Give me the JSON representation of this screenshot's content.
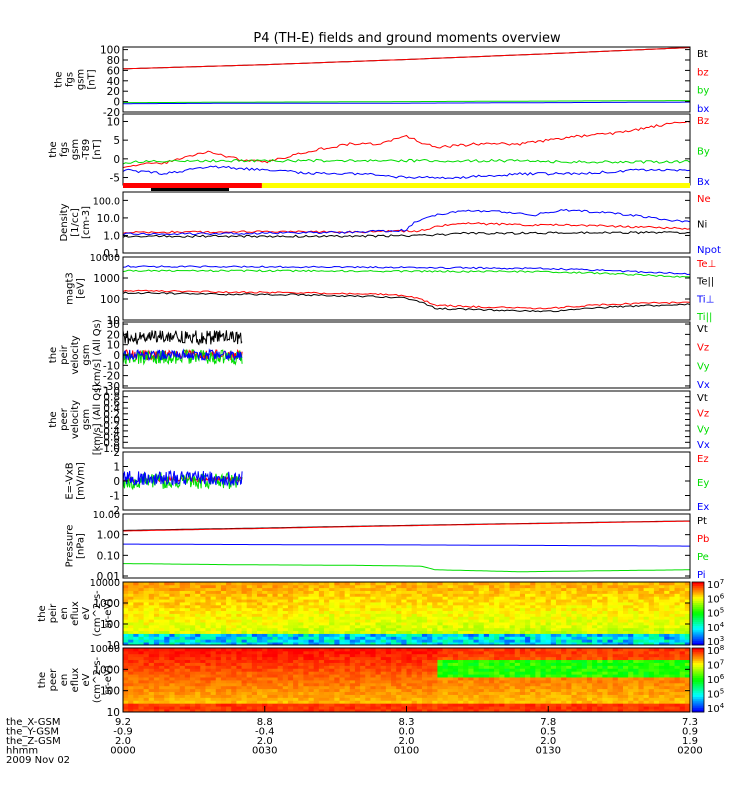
{
  "title": "P4 (TH-E) fields and ground moments overview",
  "colors": {
    "black": "#000000",
    "red": "#ff0000",
    "green": "#00dd00",
    "blue": "#0000ff",
    "yellow": "#ffff00"
  },
  "x_axis": {
    "ticks": [
      "0000",
      "0030",
      "0100",
      "0130",
      "0200"
    ],
    "rows": [
      {
        "name": "the_X-GSM",
        "values": [
          "9.2",
          "8.8",
          "8.3",
          "7.8",
          "7.3"
        ]
      },
      {
        "name": "the_Y-GSM",
        "values": [
          "-0.9",
          "-0.4",
          "0.0",
          "0.5",
          "0.9"
        ]
      },
      {
        "name": "the_Z-GSM",
        "values": [
          "2.0",
          "2.0",
          "2.0",
          "2.0",
          "1.9"
        ]
      },
      {
        "name": "hhmm",
        "values": []
      }
    ],
    "date": "2009 Nov 02"
  },
  "chart_data": [
    {
      "type": "line",
      "ylabel": [
        "the",
        "fgs",
        "gsm",
        "[nT]"
      ],
      "yticks": [
        "-20",
        "0",
        "20",
        "40",
        "60",
        "80",
        "100"
      ],
      "ylim": [
        -20,
        105
      ],
      "legend": [
        {
          "name": "Bt",
          "color": "black"
        },
        {
          "name": "bz",
          "color": "red"
        },
        {
          "name": "by",
          "color": "green"
        },
        {
          "name": "bx",
          "color": "blue"
        }
      ],
      "series": [
        {
          "name": "Bt",
          "color": "black",
          "x": [
            0,
            0.5,
            1,
            1.5,
            2
          ],
          "values": [
            63,
            71,
            81,
            92,
            104
          ]
        },
        {
          "name": "bz",
          "color": "red",
          "x": [
            0,
            0.5,
            1,
            1.5,
            2
          ],
          "values": [
            63,
            71,
            81,
            92,
            104
          ]
        },
        {
          "name": "by",
          "color": "green",
          "x": [
            0,
            0.5,
            1,
            1.5,
            2
          ],
          "values": [
            -2,
            -1,
            0,
            1,
            2
          ]
        },
        {
          "name": "bx",
          "color": "blue",
          "x": [
            0,
            0.5,
            1,
            1.5,
            2
          ],
          "values": [
            -4,
            -3,
            -3,
            -2,
            -1
          ]
        }
      ]
    },
    {
      "type": "line",
      "ylabel": [
        "the",
        "fgs",
        "gsm",
        "-T89",
        "[nT]"
      ],
      "yticks": [
        "-5",
        "0",
        "5",
        "10"
      ],
      "ylim": [
        -7,
        12
      ],
      "legend": [
        {
          "name": "Bz",
          "color": "red"
        },
        {
          "name": "By",
          "color": "green"
        },
        {
          "name": "Bx",
          "color": "blue"
        }
      ],
      "series": [
        {
          "name": "Bz",
          "color": "red",
          "x": [
            0,
            0.15,
            0.3,
            0.4,
            0.5,
            0.65,
            0.8,
            0.9,
            1.0,
            1.1,
            1.25,
            1.4,
            1.6,
            1.75,
            1.9,
            2.0
          ],
          "values": [
            -2,
            -1,
            2,
            0,
            -1,
            2,
            4,
            4,
            6,
            3,
            4,
            4,
            6,
            7,
            9,
            10
          ]
        },
        {
          "name": "By",
          "color": "green",
          "x": [
            0,
            0.15,
            0.3,
            0.5,
            0.7,
            1.0,
            1.3,
            1.6,
            2.0
          ],
          "values": [
            -1,
            -0.5,
            -0.5,
            -0.5,
            -0.5,
            -0.5,
            -0.5,
            -0.8,
            -0.8
          ]
        },
        {
          "name": "Bx",
          "color": "blue",
          "x": [
            0,
            0.15,
            0.3,
            0.5,
            0.7,
            0.85,
            1.0,
            1.2,
            1.4,
            1.6,
            1.8,
            2.0
          ],
          "values": [
            -3,
            -4,
            -2,
            -3,
            -4,
            -4,
            -5,
            -5,
            -4,
            -4,
            -3,
            -3
          ]
        }
      ]
    },
    {
      "type": "line",
      "ylabel": [
        "Density",
        "[1/cc]",
        "[cm-3]"
      ],
      "yticks": [
        "0.1",
        "1.0",
        "10.0",
        "100.0"
      ],
      "yscale": "log",
      "ylim": [
        0.1,
        300
      ],
      "legend": [
        {
          "name": "Ne",
          "color": "red"
        },
        {
          "name": "Ni",
          "color": "black"
        },
        {
          "name": "Npot",
          "color": "blue"
        }
      ],
      "series": [
        {
          "name": "Ne",
          "color": "red",
          "x": [
            0,
            0.4,
            0.8,
            1.05,
            1.1,
            1.2,
            1.4,
            1.6,
            1.8,
            2.0
          ],
          "values": [
            1.5,
            1.6,
            1.6,
            1.8,
            3,
            5,
            4,
            4,
            3,
            2.5
          ]
        },
        {
          "name": "Ni",
          "color": "black",
          "x": [
            0,
            0.4,
            0.8,
            1.05,
            1.2,
            1.6,
            2.0
          ],
          "values": [
            0.9,
            0.9,
            0.9,
            1.0,
            1.3,
            1.4,
            1.5
          ]
        },
        {
          "name": "Npot",
          "color": "blue",
          "x": [
            0,
            0.4,
            0.8,
            1.0,
            1.1,
            1.2,
            1.35,
            1.45,
            1.55,
            1.7,
            1.9,
            2.0
          ],
          "values": [
            1.2,
            1.3,
            1.5,
            2,
            14,
            25,
            22,
            14,
            28,
            20,
            8,
            6
          ]
        }
      ]
    },
    {
      "type": "line",
      "ylabel": [
        "magt3",
        "[eV]"
      ],
      "yticks": [
        "10",
        "100",
        "1000",
        "10000"
      ],
      "yscale": "log",
      "ylim": [
        10,
        10000
      ],
      "legend": [
        {
          "name": "Te⊥",
          "color": "red"
        },
        {
          "name": "Te||",
          "color": "black"
        },
        {
          "name": "Ti⊥",
          "color": "blue"
        },
        {
          "name": "Ti||",
          "color": "green"
        }
      ],
      "series": [
        {
          "name": "Te⊥",
          "color": "red",
          "x": [
            0,
            0.3,
            0.6,
            0.9,
            1.0,
            1.1,
            1.3,
            1.5,
            1.7,
            2.0
          ],
          "values": [
            250,
            220,
            200,
            170,
            140,
            50,
            40,
            35,
            55,
            70
          ]
        },
        {
          "name": "Te||",
          "color": "black",
          "x": [
            0,
            0.3,
            0.6,
            0.9,
            1.0,
            1.1,
            1.3,
            1.5,
            1.7,
            2.0
          ],
          "values": [
            200,
            170,
            160,
            130,
            110,
            35,
            30,
            25,
            40,
            55
          ]
        },
        {
          "name": "Ti⊥",
          "color": "blue",
          "x": [
            0,
            0.5,
            1.0,
            1.5,
            2.0
          ],
          "values": [
            3600,
            3400,
            3200,
            2800,
            1500
          ]
        },
        {
          "name": "Ti||",
          "color": "green",
          "x": [
            0,
            0.5,
            1.0,
            1.5,
            2.0
          ],
          "values": [
            2200,
            2200,
            2100,
            2000,
            1100
          ]
        }
      ]
    },
    {
      "type": "line",
      "ylabel": [
        "the",
        "peir",
        "velocity",
        "gsm",
        "[km/s] (All Qs)"
      ],
      "yticks": [
        "-30",
        "-20",
        "-10",
        "0",
        "10",
        "20",
        "30"
      ],
      "ylim": [
        -32,
        32
      ],
      "legend": [
        {
          "name": "Vt",
          "color": "black"
        },
        {
          "name": "Vz",
          "color": "red"
        },
        {
          "name": "Vy",
          "color": "green"
        },
        {
          "name": "Vx",
          "color": "blue"
        }
      ],
      "series": [
        {
          "name": "Vt",
          "color": "black",
          "x": [
            0,
            0.42
          ],
          "values": [
            10,
            10
          ]
        },
        {
          "name": "Vz",
          "color": "red",
          "x": [
            0,
            0.42
          ],
          "values": [
            0,
            0
          ]
        },
        {
          "name": "Vy",
          "color": "green",
          "x": [
            0,
            0.42
          ],
          "values": [
            -2,
            -2
          ]
        },
        {
          "name": "Vx",
          "color": "blue",
          "x": [
            0,
            0.42
          ],
          "values": [
            0,
            0
          ]
        }
      ]
    },
    {
      "type": "line",
      "ylabel": [
        "the",
        "peer",
        "velocity",
        "gsm",
        "[km/s] (All Qs)"
      ],
      "yticks": [
        "-1.0",
        "-0.8",
        "-0.6",
        "-0.4",
        "-0.2",
        "0.0",
        "0.2",
        "0.4",
        "0.6",
        "0.8",
        "1.0"
      ],
      "ylim": [
        -1.0,
        1.0
      ],
      "legend": [
        {
          "name": "Vt",
          "color": "black"
        },
        {
          "name": "Vz",
          "color": "red"
        },
        {
          "name": "Vy",
          "color": "green"
        },
        {
          "name": "Vx",
          "color": "blue"
        }
      ],
      "series": []
    },
    {
      "type": "line",
      "ylabel": [
        "E=-VxB",
        "[mV/m]"
      ],
      "yticks": [
        "-2",
        "-1",
        "0",
        "1",
        "2"
      ],
      "ylim": [
        -2,
        2
      ],
      "legend": [
        {
          "name": "Ez",
          "color": "red"
        },
        {
          "name": "Ey",
          "color": "green"
        },
        {
          "name": "Ex",
          "color": "blue"
        }
      ],
      "series": [
        {
          "name": "Ez",
          "color": "red",
          "x": [
            0,
            0.42
          ],
          "values": [
            0.1,
            0.1
          ]
        },
        {
          "name": "Ey",
          "color": "green",
          "x": [
            0,
            0.42
          ],
          "values": [
            0,
            0
          ]
        },
        {
          "name": "Ex",
          "color": "blue",
          "x": [
            0,
            0.42
          ],
          "values": [
            0.2,
            0.2
          ]
        }
      ]
    },
    {
      "type": "line",
      "ylabel": [
        "Pressure",
        "[nPa]"
      ],
      "yticks": [
        "0.01",
        "0.10",
        "1.00",
        "10.00"
      ],
      "yscale": "log",
      "ylim": [
        0.008,
        10
      ],
      "legend": [
        {
          "name": "Pt",
          "color": "black"
        },
        {
          "name": "Pb",
          "color": "red"
        },
        {
          "name": "Pe",
          "color": "green"
        },
        {
          "name": "Pi",
          "color": "blue"
        }
      ],
      "series": [
        {
          "name": "Pt",
          "color": "black",
          "x": [
            0,
            0.5,
            1.0,
            1.5,
            2.0
          ],
          "values": [
            1.6,
            2.1,
            2.8,
            3.6,
            4.6
          ]
        },
        {
          "name": "Pb",
          "color": "red",
          "x": [
            0,
            0.5,
            1.0,
            1.5,
            2.0
          ],
          "values": [
            1.5,
            2.0,
            2.7,
            3.5,
            4.5
          ]
        },
        {
          "name": "Pe",
          "color": "green",
          "x": [
            0,
            0.4,
            0.8,
            1.05,
            1.1,
            1.4,
            1.7,
            2.0
          ],
          "values": [
            0.04,
            0.035,
            0.033,
            0.03,
            0.02,
            0.016,
            0.018,
            0.02
          ]
        },
        {
          "name": "Pi",
          "color": "blue",
          "x": [
            0,
            0.5,
            1.0,
            1.5,
            2.0
          ],
          "values": [
            0.35,
            0.33,
            0.32,
            0.3,
            0.28
          ]
        }
      ]
    },
    {
      "type": "heatmap",
      "ylabel": [
        "the",
        "peir",
        "en",
        "eflux",
        "eV",
        "(cm^2-s-",
        "sr-eV)"
      ],
      "yticks": [
        "10",
        "100",
        "1000",
        "10000"
      ],
      "yscale": "log",
      "colorbar_labels": [
        "10^3",
        "10^4",
        "10^5",
        "10^6",
        "10^7"
      ]
    },
    {
      "type": "heatmap",
      "ylabel": [
        "the",
        "peer",
        "en",
        "eflux",
        "eV",
        "(cm^2-s-",
        "sr-eV)"
      ],
      "yticks": [
        "10",
        "100",
        "1000",
        "10000"
      ],
      "yscale": "log",
      "colorbar_labels": [
        "10^4",
        "10^5",
        "10^6",
        "10^7",
        "10^8"
      ]
    }
  ]
}
